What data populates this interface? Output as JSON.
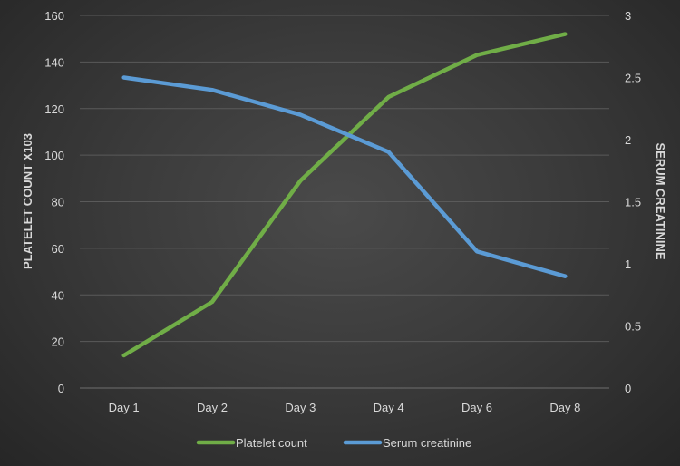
{
  "chart_data": {
    "type": "line",
    "categories": [
      "Day 1",
      "Day 2",
      "Day 3",
      "Day 4",
      "Day 6",
      "Day 8"
    ],
    "series": [
      {
        "name": "Platelet count",
        "axis": "left",
        "color": "#70ad47",
        "values": [
          14,
          37,
          89,
          125,
          143,
          152
        ]
      },
      {
        "name": "Serum creatinine",
        "axis": "right",
        "color": "#5b9bd5",
        "values": [
          2.5,
          2.4,
          2.2,
          1.9,
          1.1,
          0.9
        ]
      }
    ],
    "ylabel": "PLATELET COUNT X103",
    "y2label": "SERUM CREATININE",
    "ylim": [
      0,
      160
    ],
    "y2lim": [
      0,
      3
    ],
    "yticks": [
      "0",
      "20",
      "40",
      "60",
      "80",
      "100",
      "120",
      "140",
      "160"
    ],
    "y2ticks": [
      "0",
      "0.5",
      "1",
      "1.5",
      "2",
      "2.5",
      "3"
    ],
    "grid": true,
    "legend": "bottom-center"
  }
}
